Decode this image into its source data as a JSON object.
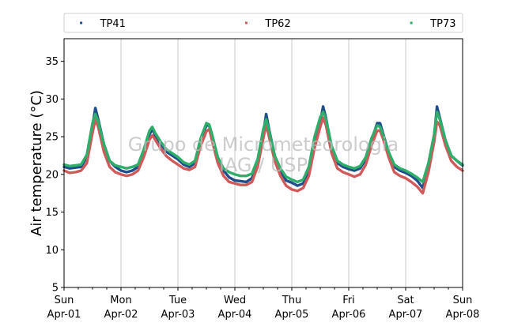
{
  "chart_data": {
    "type": "line",
    "ylabel": "Air temperature (°C)",
    "xlabel": "",
    "ylim": [
      5,
      38
    ],
    "xlim": [
      0,
      7
    ],
    "yticks": [
      5,
      10,
      15,
      20,
      25,
      30,
      35
    ],
    "xticks": [
      {
        "day": 0,
        "weekday": "Sun",
        "date": "Apr-01"
      },
      {
        "day": 1,
        "weekday": "Mon",
        "date": "Apr-02"
      },
      {
        "day": 2,
        "weekday": "Tue",
        "date": "Apr-03"
      },
      {
        "day": 3,
        "weekday": "Wed",
        "date": "Apr-04"
      },
      {
        "day": 4,
        "weekday": "Thu",
        "date": "Apr-05"
      },
      {
        "day": 5,
        "weekday": "Fri",
        "date": "Apr-06"
      },
      {
        "day": 6,
        "weekday": "Sat",
        "date": "Apr-07"
      },
      {
        "day": 7,
        "weekday": "Sun",
        "date": "Apr-08"
      }
    ],
    "grid": "vertical",
    "legend_position": "top",
    "watermark": [
      "Grupo de Micrometeorologia",
      "IAG / USP"
    ],
    "series": [
      {
        "name": "TP41",
        "color": "#1f4e8c",
        "x": [
          0,
          0.1,
          0.2,
          0.3,
          0.4,
          0.5,
          0.55,
          0.6,
          0.7,
          0.8,
          0.9,
          1.0,
          1.1,
          1.2,
          1.3,
          1.4,
          1.5,
          1.55,
          1.6,
          1.7,
          1.8,
          1.9,
          2.0,
          2.1,
          2.2,
          2.3,
          2.4,
          2.5,
          2.55,
          2.6,
          2.7,
          2.8,
          2.9,
          3.0,
          3.1,
          3.2,
          3.3,
          3.4,
          3.5,
          3.55,
          3.6,
          3.7,
          3.8,
          3.9,
          4.0,
          4.1,
          4.2,
          4.3,
          4.4,
          4.5,
          4.55,
          4.6,
          4.7,
          4.8,
          4.9,
          5.0,
          5.1,
          5.2,
          5.3,
          5.4,
          5.5,
          5.55,
          5.6,
          5.7,
          5.8,
          5.9,
          6.0,
          6.1,
          6.2,
          6.3,
          6.4,
          6.5,
          6.55,
          6.6,
          6.7,
          6.8,
          6.9,
          7.0
        ],
        "y": [
          21.0,
          20.8,
          20.9,
          21.0,
          22.3,
          26.5,
          28.8,
          27.3,
          24.0,
          21.8,
          21.0,
          20.5,
          20.3,
          20.5,
          21.0,
          23.0,
          25.3,
          26.0,
          25.2,
          24.0,
          23.0,
          22.5,
          22.0,
          21.3,
          21.0,
          21.5,
          24.5,
          26.5,
          26.5,
          25.0,
          22.0,
          20.5,
          19.6,
          19.2,
          19.1,
          19.0,
          19.5,
          21.5,
          25.5,
          28.0,
          26.0,
          22.5,
          20.5,
          19.2,
          18.9,
          18.5,
          18.8,
          20.5,
          24.5,
          27.0,
          29.0,
          27.5,
          23.5,
          21.5,
          21.0,
          20.7,
          20.5,
          20.8,
          22.0,
          24.5,
          26.8,
          26.8,
          25.5,
          23.0,
          21.0,
          20.5,
          20.2,
          19.8,
          19.2,
          18.2,
          21.0,
          25.0,
          29.0,
          27.5,
          24.5,
          22.5,
          21.8,
          21.2
        ]
      },
      {
        "name": "TP62",
        "color": "#d05a5a",
        "x": [
          0,
          0.1,
          0.2,
          0.3,
          0.4,
          0.5,
          0.55,
          0.6,
          0.7,
          0.8,
          0.9,
          1.0,
          1.1,
          1.2,
          1.3,
          1.4,
          1.5,
          1.55,
          1.6,
          1.7,
          1.8,
          1.9,
          2.0,
          2.1,
          2.2,
          2.3,
          2.4,
          2.5,
          2.55,
          2.6,
          2.7,
          2.8,
          2.9,
          3.0,
          3.1,
          3.2,
          3.3,
          3.4,
          3.5,
          3.55,
          3.6,
          3.7,
          3.8,
          3.9,
          4.0,
          4.1,
          4.2,
          4.3,
          4.4,
          4.5,
          4.55,
          4.6,
          4.7,
          4.8,
          4.9,
          5.0,
          5.1,
          5.2,
          5.3,
          5.4,
          5.5,
          5.55,
          5.6,
          5.7,
          5.8,
          5.9,
          6.0,
          6.1,
          6.2,
          6.3,
          6.4,
          6.5,
          6.55,
          6.6,
          6.7,
          6.8,
          6.9,
          7.0
        ],
        "y": [
          20.5,
          20.2,
          20.3,
          20.5,
          21.5,
          25.5,
          27.3,
          26.3,
          23.0,
          21.0,
          20.3,
          20.0,
          19.8,
          20.0,
          20.5,
          22.3,
          24.6,
          25.2,
          24.6,
          23.4,
          22.4,
          21.8,
          21.3,
          20.8,
          20.6,
          21.0,
          23.8,
          25.7,
          26.0,
          24.5,
          21.5,
          19.8,
          19.0,
          18.8,
          18.6,
          18.6,
          19.0,
          21.0,
          24.8,
          26.6,
          25.0,
          21.8,
          19.8,
          18.5,
          18.0,
          17.8,
          18.2,
          19.8,
          23.5,
          26.3,
          27.5,
          26.5,
          22.8,
          20.8,
          20.3,
          20.0,
          19.7,
          20.0,
          21.3,
          23.8,
          25.8,
          25.8,
          24.8,
          22.3,
          20.3,
          19.8,
          19.5,
          19.0,
          18.4,
          17.5,
          20.3,
          24.3,
          27.0,
          26.5,
          23.8,
          21.8,
          21.0,
          20.5
        ]
      },
      {
        "name": "TP73",
        "color": "#2fae6a",
        "x": [
          0,
          0.1,
          0.2,
          0.3,
          0.4,
          0.5,
          0.55,
          0.6,
          0.7,
          0.8,
          0.9,
          1.0,
          1.1,
          1.2,
          1.3,
          1.4,
          1.5,
          1.55,
          1.6,
          1.7,
          1.8,
          1.9,
          2.0,
          2.1,
          2.2,
          2.3,
          2.4,
          2.5,
          2.55,
          2.6,
          2.7,
          2.8,
          2.9,
          3.0,
          3.1,
          3.2,
          3.3,
          3.4,
          3.5,
          3.55,
          3.6,
          3.7,
          3.8,
          3.9,
          4.0,
          4.1,
          4.2,
          4.3,
          4.4,
          4.5,
          4.55,
          4.6,
          4.7,
          4.8,
          4.9,
          5.0,
          5.1,
          5.2,
          5.3,
          5.4,
          5.5,
          5.55,
          5.6,
          5.7,
          5.8,
          5.9,
          6.0,
          6.1,
          6.2,
          6.3,
          6.4,
          6.5,
          6.55,
          6.6,
          6.7,
          6.8,
          6.9,
          7.0
        ],
        "y": [
          21.3,
          21.1,
          21.2,
          21.3,
          22.6,
          26.8,
          28.0,
          27.0,
          24.0,
          21.8,
          21.2,
          21.0,
          20.8,
          21.0,
          21.3,
          23.3,
          25.8,
          26.3,
          25.5,
          24.3,
          23.3,
          22.8,
          22.3,
          21.6,
          21.3,
          21.8,
          24.8,
          26.8,
          26.6,
          25.3,
          22.3,
          20.8,
          20.3,
          20.0,
          19.8,
          19.8,
          20.1,
          22.0,
          26.0,
          27.3,
          25.8,
          22.5,
          20.8,
          19.7,
          19.3,
          19.0,
          19.3,
          21.0,
          25.0,
          27.6,
          28.3,
          27.3,
          23.8,
          21.8,
          21.3,
          21.0,
          20.8,
          21.1,
          22.3,
          24.8,
          26.5,
          26.3,
          25.3,
          23.0,
          21.3,
          20.8,
          20.5,
          20.1,
          19.6,
          19.0,
          21.5,
          25.3,
          28.3,
          27.3,
          24.5,
          22.5,
          21.8,
          21.3
        ]
      }
    ]
  }
}
